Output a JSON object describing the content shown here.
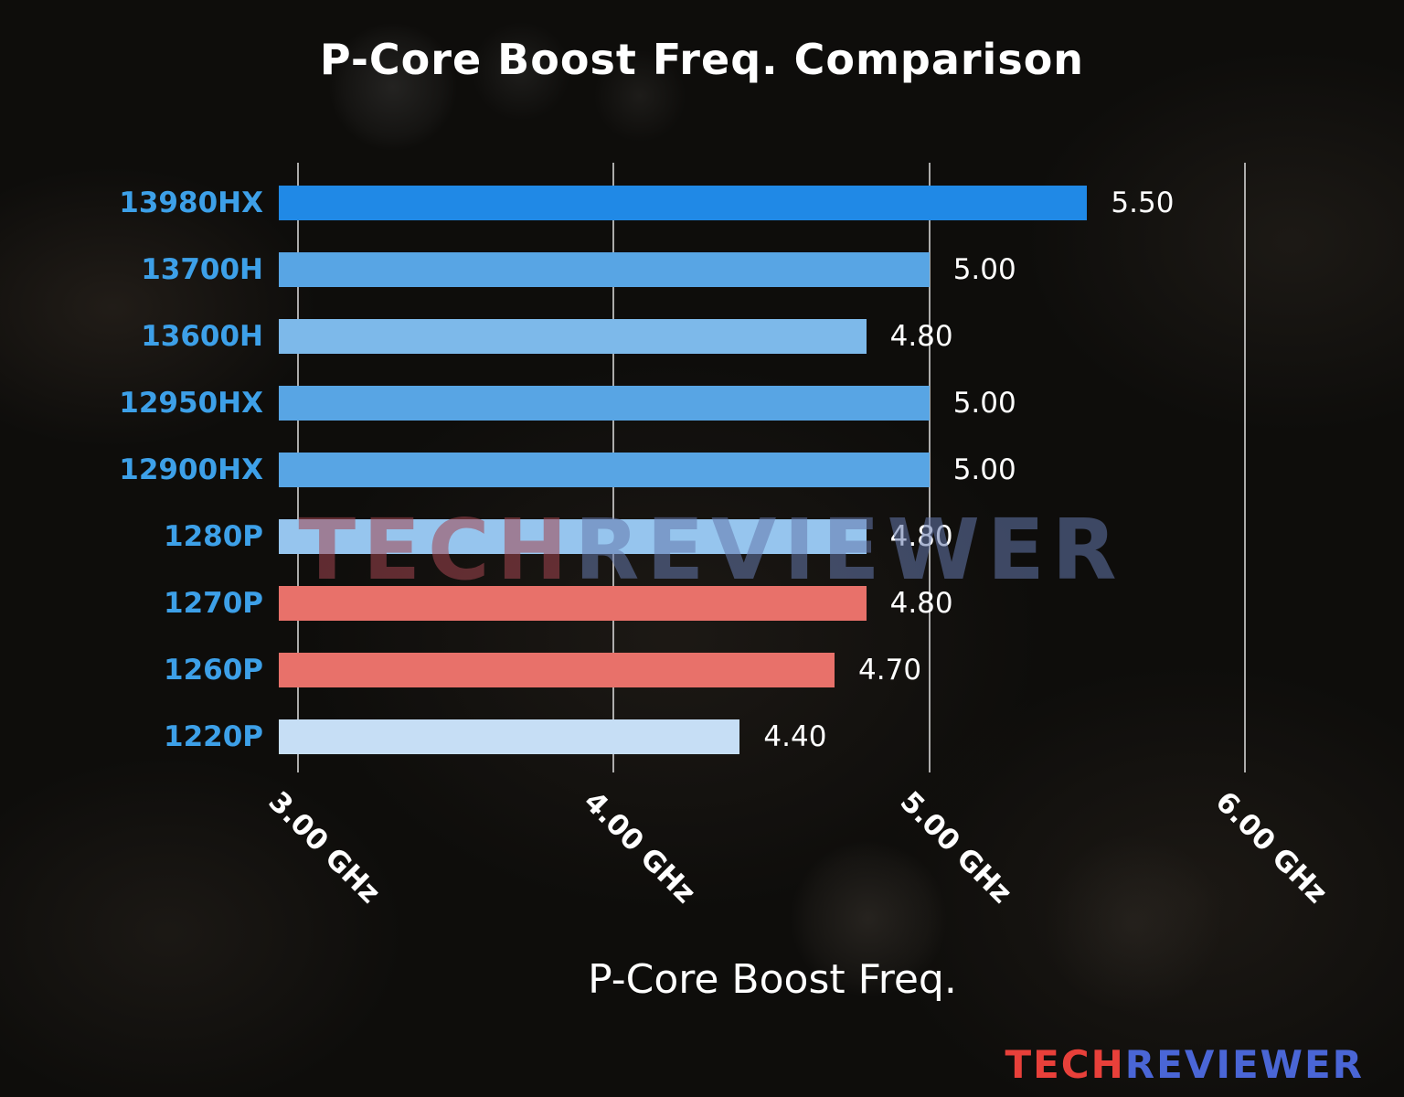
{
  "chart_data": {
    "type": "bar",
    "orientation": "horizontal",
    "title": "P-Core Boost Freq. Comparison",
    "xlabel": "P-Core Boost Freq.",
    "categories": [
      "13980HX",
      "13700H",
      "13600H",
      "12950HX",
      "12900HX",
      "1280P",
      "1270P",
      "1260P",
      "1220P"
    ],
    "values": [
      5.5,
      5.0,
      4.8,
      5.0,
      5.0,
      4.8,
      4.8,
      4.7,
      4.4
    ],
    "value_labels": [
      "5.50",
      "5.00",
      "4.80",
      "5.00",
      "5.00",
      "4.80",
      "4.80",
      "4.70",
      "4.40"
    ],
    "bar_colors": [
      "#2089e6",
      "#58a5e4",
      "#7db9ea",
      "#58a5e4",
      "#58a5e4",
      "#96c5ee",
      "#e8716a",
      "#e8716a",
      "#c6def5"
    ],
    "xlim": [
      2.94,
      6.37
    ],
    "xticks": [
      3,
      4,
      5,
      6
    ],
    "xtick_labels": [
      "3.00 GHz",
      "4.00 GHz",
      "5.00 GHz",
      "6.00 GHz"
    ],
    "grid": true,
    "legend": false,
    "colors": {
      "title": "#ffffff",
      "category_label": "#3da0e8",
      "value_label": "#ffffff",
      "tick_label": "#ffffff",
      "gridline": "#e0e0e0"
    }
  },
  "watermark": {
    "tech": "TECH",
    "reviewer": "REVIEWER",
    "tech_color": "#a34550",
    "reviewer_color": "#6579ad"
  },
  "logo": {
    "tech": "TECH",
    "reviewer": "REVIEWER",
    "tech_color": "#e8403a",
    "reviewer_color": "#4a66d6"
  }
}
